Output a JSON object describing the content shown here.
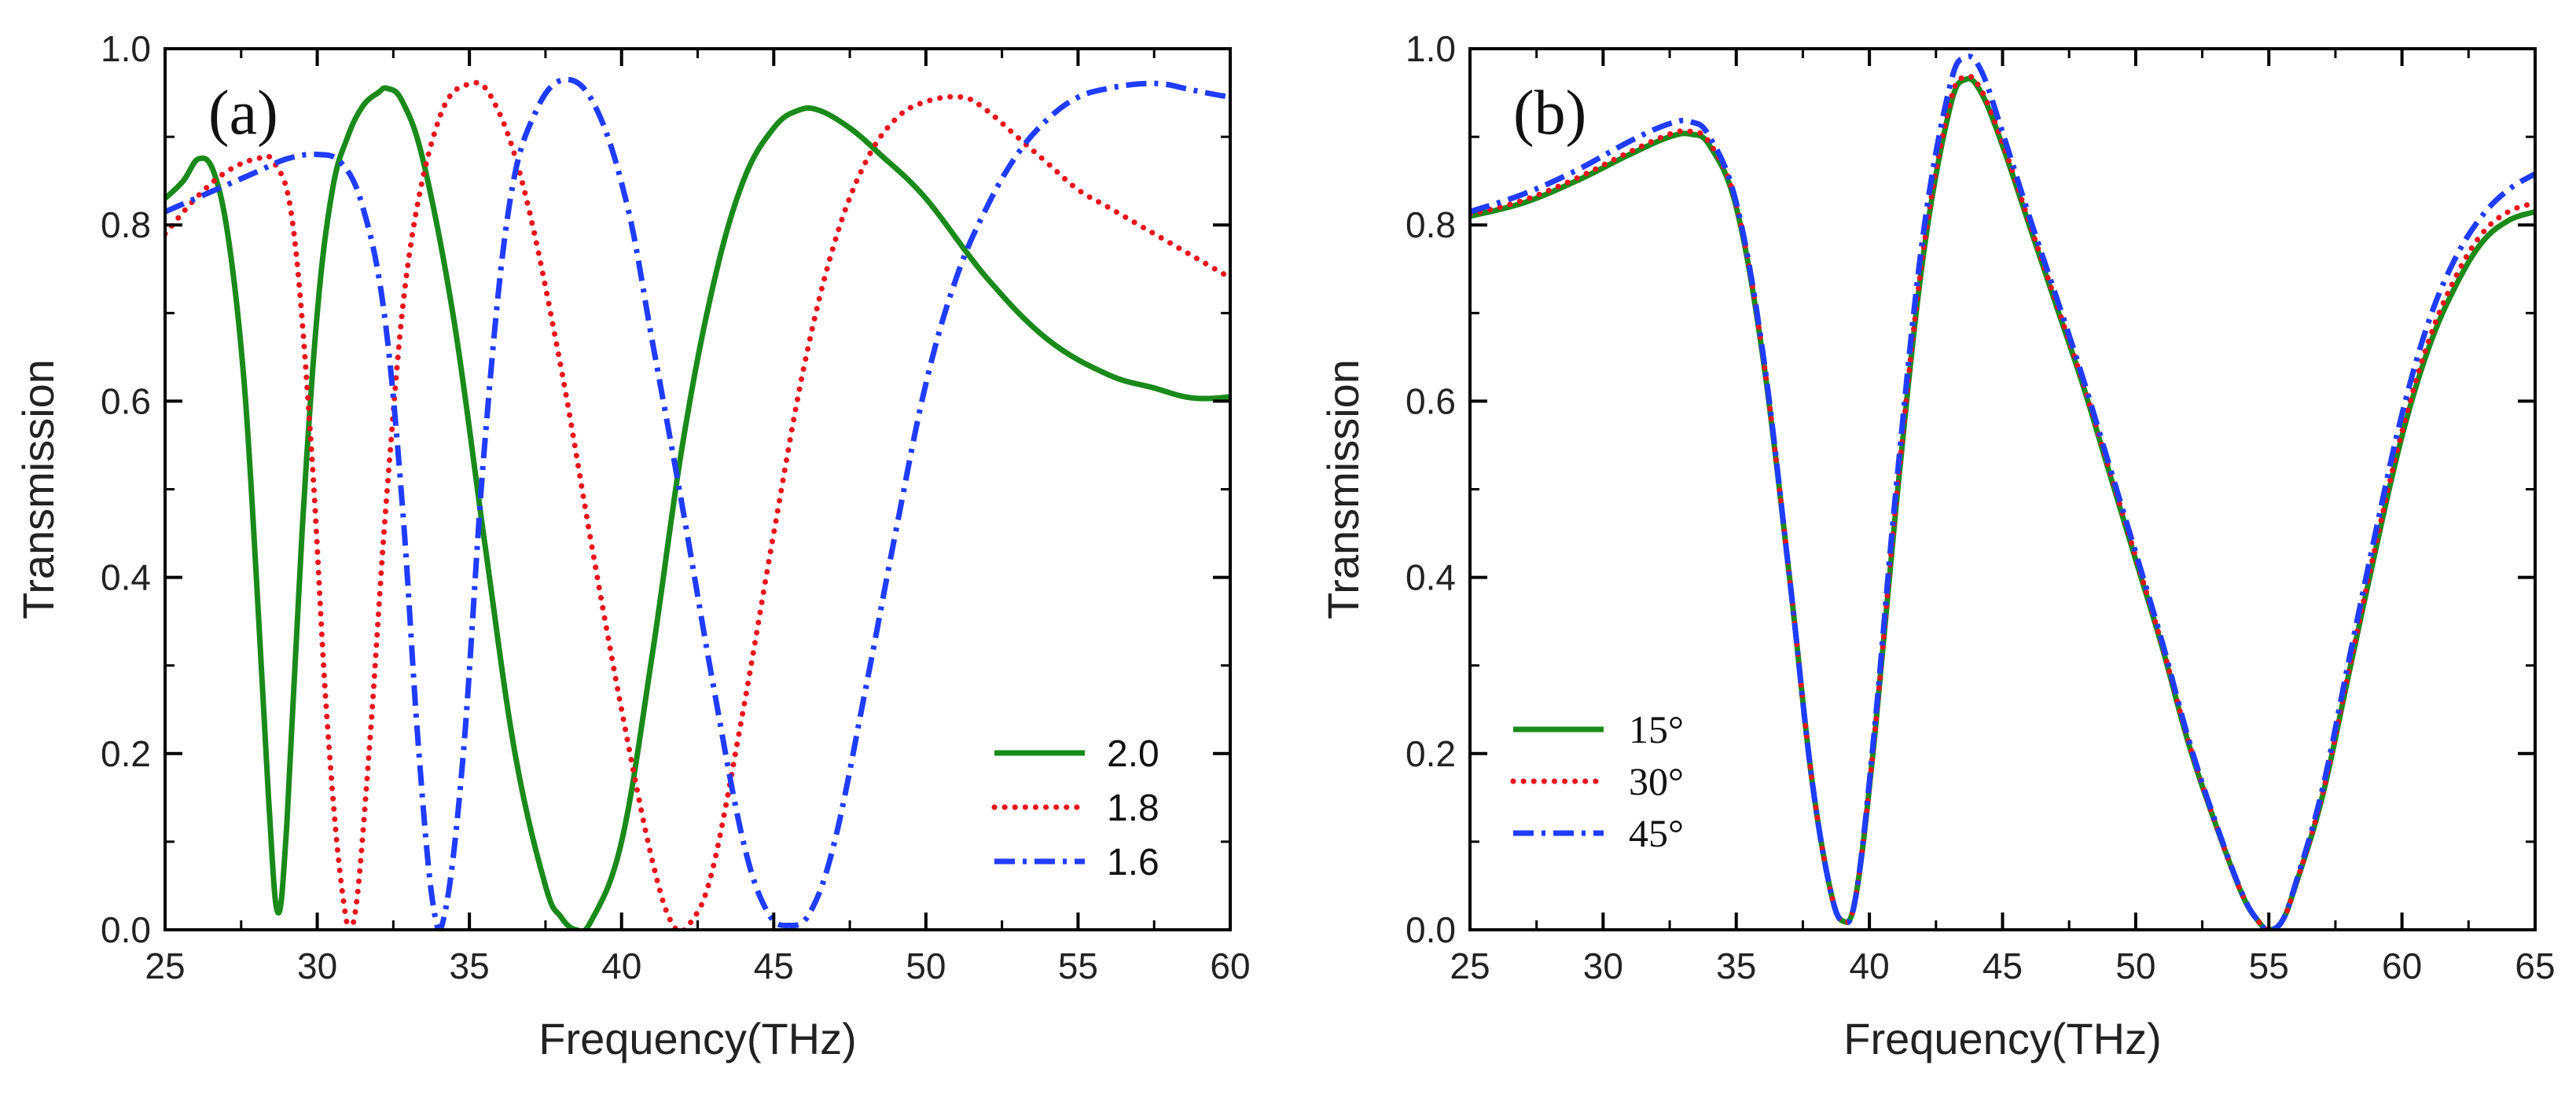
{
  "chart_data": [
    {
      "type": "line",
      "panel": "(a)",
      "xlabel": "Frequency(THz)",
      "ylabel": "Transmission",
      "xlim": [
        25,
        60
      ],
      "ylim": [
        0.0,
        1.0
      ],
      "xticks": [
        "25",
        "30",
        "35",
        "40",
        "45",
        "50",
        "55",
        "60"
      ],
      "yticks": [
        "0.0",
        "0.2",
        "0.4",
        "0.6",
        "0.8",
        "1.0"
      ],
      "legend_position": "bottom-right",
      "legend_font": "sans",
      "series": [
        {
          "name": "2.0",
          "color": "#1a8a1a",
          "dash": "solid",
          "x": [
            25,
            25.6,
            26.1,
            26.6,
            27.1,
            27.6,
            28.0,
            28.4,
            28.7,
            29.0,
            29.5,
            30.0,
            30.5,
            31.0,
            31.5,
            32.0,
            32.3,
            32.8,
            33.5,
            34.5,
            35.5,
            36.5,
            37.5,
            38.0,
            38.5,
            39.0,
            40.0,
            41.0,
            42.0,
            43.0,
            44.0,
            45.0,
            45.8,
            46.5,
            47.5,
            48.5,
            50.0,
            52.0,
            54.0,
            56.0,
            57.5,
            58.5,
            59.3,
            60.0
          ],
          "y": [
            0.83,
            0.85,
            0.875,
            0.86,
            0.78,
            0.62,
            0.4,
            0.15,
            0.02,
            0.12,
            0.45,
            0.7,
            0.84,
            0.9,
            0.935,
            0.95,
            0.955,
            0.94,
            0.87,
            0.69,
            0.44,
            0.2,
            0.05,
            0.015,
            0.0,
            0.01,
            0.1,
            0.31,
            0.55,
            0.73,
            0.85,
            0.91,
            0.93,
            0.93,
            0.91,
            0.88,
            0.83,
            0.74,
            0.67,
            0.63,
            0.615,
            0.605,
            0.603,
            0.605
          ]
        },
        {
          "name": "1.8",
          "color": "#e8141c",
          "dash": "dot",
          "x": [
            25,
            26.0,
            27.0,
            28.0,
            28.6,
            29.2,
            29.8,
            30.3,
            30.8,
            31.2,
            31.7,
            32.3,
            33.0,
            34.0,
            35.0,
            35.8,
            36.8,
            38.0,
            39.0,
            40.0,
            41.0,
            41.7,
            42.3,
            43.0,
            44.0,
            45.0,
            46.0,
            47.0,
            48.0,
            49.0,
            50.0,
            51.2,
            52.0,
            53.0,
            54.0,
            55.0,
            56.0,
            57.0,
            58.0,
            59.0,
            60.0
          ],
          "y": [
            0.79,
            0.83,
            0.86,
            0.875,
            0.87,
            0.8,
            0.55,
            0.25,
            0.05,
            0.01,
            0.2,
            0.5,
            0.76,
            0.92,
            0.96,
            0.94,
            0.84,
            0.64,
            0.44,
            0.25,
            0.08,
            0.005,
            0.01,
            0.07,
            0.25,
            0.45,
            0.64,
            0.78,
            0.87,
            0.92,
            0.94,
            0.945,
            0.93,
            0.9,
            0.87,
            0.84,
            0.82,
            0.8,
            0.78,
            0.76,
            0.74
          ]
        },
        {
          "name": "1.6",
          "color": "#1f3cff",
          "dash": "dashdot",
          "x": [
            25,
            26.0,
            27.0,
            28.0,
            29.0,
            30.0,
            30.8,
            31.5,
            32.2,
            32.8,
            33.3,
            33.8,
            34.2,
            34.8,
            35.5,
            36.3,
            37.2,
            38.2,
            39.2,
            40.2,
            41.0,
            42.0,
            43.0,
            44.0,
            44.8,
            45.5,
            46.2,
            47.0,
            48.0,
            49.0,
            50.0,
            51.0,
            52.0,
            53.0,
            54.0,
            55.0,
            56.0,
            57.0,
            57.8,
            58.5,
            59.2,
            60.0
          ],
          "y": [
            0.815,
            0.83,
            0.845,
            0.86,
            0.875,
            0.88,
            0.87,
            0.82,
            0.7,
            0.48,
            0.22,
            0.03,
            0.02,
            0.2,
            0.55,
            0.82,
            0.93,
            0.965,
            0.93,
            0.82,
            0.67,
            0.48,
            0.28,
            0.1,
            0.02,
            0.005,
            0.02,
            0.1,
            0.27,
            0.45,
            0.62,
            0.74,
            0.82,
            0.88,
            0.92,
            0.945,
            0.955,
            0.96,
            0.96,
            0.955,
            0.95,
            0.945
          ]
        }
      ]
    },
    {
      "type": "line",
      "panel": "(b)",
      "xlabel": "Frequency(THz)",
      "ylabel": "Transmission",
      "xlim": [
        25,
        65
      ],
      "ylim": [
        0.0,
        1.0
      ],
      "xticks": [
        "25",
        "30",
        "35",
        "40",
        "45",
        "50",
        "55",
        "60",
        "65"
      ],
      "yticks": [
        "0.0",
        "0.2",
        "0.4",
        "0.6",
        "0.8",
        "1.0"
      ],
      "legend_position": "bottom-left",
      "legend_font": "serif",
      "series": [
        {
          "name": "15°",
          "color": "#1a8a1a",
          "dash": "solid",
          "x": [
            25,
            27,
            29,
            31,
            32.5,
            33.3,
            34.0,
            35.0,
            36.0,
            37.0,
            37.8,
            38.5,
            39.0,
            39.5,
            40.2,
            41.0,
            42.0,
            43.0,
            43.6,
            44.2,
            45.0,
            46.0,
            47.0,
            48.0,
            49.0,
            50.0,
            51.0,
            52.0,
            53.0,
            54.0,
            54.6,
            55.0,
            55.5,
            56.0,
            57.0,
            58.0,
            59.0,
            60.0,
            61.0,
            62.0,
            63.0,
            64.0,
            65.0
          ],
          "y": [
            0.81,
            0.825,
            0.85,
            0.88,
            0.9,
            0.903,
            0.89,
            0.82,
            0.65,
            0.4,
            0.18,
            0.05,
            0.01,
            0.04,
            0.22,
            0.48,
            0.76,
            0.93,
            0.965,
            0.95,
            0.89,
            0.8,
            0.71,
            0.62,
            0.52,
            0.42,
            0.32,
            0.21,
            0.12,
            0.04,
            0.01,
            0.0,
            0.01,
            0.05,
            0.15,
            0.29,
            0.43,
            0.56,
            0.66,
            0.73,
            0.78,
            0.805,
            0.815
          ]
        },
        {
          "name": "30°",
          "color": "#e8141c",
          "dash": "dot",
          "x": [
            25,
            27,
            29,
            31,
            32.5,
            33.3,
            34.0,
            35.0,
            36.0,
            37.0,
            37.8,
            38.5,
            39.0,
            39.5,
            40.2,
            41.0,
            42.0,
            43.0,
            43.6,
            44.2,
            45.0,
            46.0,
            47.0,
            48.0,
            49.0,
            50.0,
            51.0,
            52.0,
            53.0,
            54.0,
            54.6,
            55.0,
            55.5,
            56.0,
            57.0,
            58.0,
            59.0,
            60.0,
            61.0,
            62.0,
            63.0,
            64.0,
            65.0
          ],
          "y": [
            0.812,
            0.828,
            0.853,
            0.883,
            0.903,
            0.906,
            0.893,
            0.823,
            0.652,
            0.4,
            0.18,
            0.05,
            0.01,
            0.04,
            0.222,
            0.485,
            0.765,
            0.935,
            0.968,
            0.953,
            0.893,
            0.803,
            0.713,
            0.623,
            0.523,
            0.423,
            0.322,
            0.212,
            0.12,
            0.04,
            0.01,
            0.0,
            0.01,
            0.05,
            0.152,
            0.293,
            0.435,
            0.565,
            0.668,
            0.74,
            0.79,
            0.815,
            0.825
          ]
        },
        {
          "name": "45°",
          "color": "#1f3cff",
          "dash": "dashdot",
          "x": [
            25,
            27,
            29,
            31,
            32.5,
            33.3,
            34.0,
            35.0,
            36.0,
            37.0,
            37.8,
            38.5,
            39.0,
            39.5,
            40.2,
            41.0,
            42.0,
            43.0,
            43.6,
            44.2,
            45.0,
            46.0,
            47.0,
            48.0,
            49.0,
            50.0,
            51.0,
            52.0,
            53.0,
            54.0,
            54.6,
            55.0,
            55.5,
            56.0,
            57.0,
            58.0,
            59.0,
            60.0,
            61.0,
            62.0,
            63.0,
            64.0,
            65.0
          ],
          "y": [
            0.815,
            0.835,
            0.862,
            0.895,
            0.915,
            0.917,
            0.9,
            0.825,
            0.655,
            0.4,
            0.18,
            0.05,
            0.01,
            0.04,
            0.23,
            0.5,
            0.785,
            0.955,
            0.99,
            0.975,
            0.905,
            0.81,
            0.72,
            0.628,
            0.528,
            0.428,
            0.326,
            0.215,
            0.122,
            0.041,
            0.01,
            0.0,
            0.01,
            0.052,
            0.158,
            0.305,
            0.45,
            0.585,
            0.69,
            0.762,
            0.81,
            0.84,
            0.858
          ]
        }
      ]
    }
  ]
}
